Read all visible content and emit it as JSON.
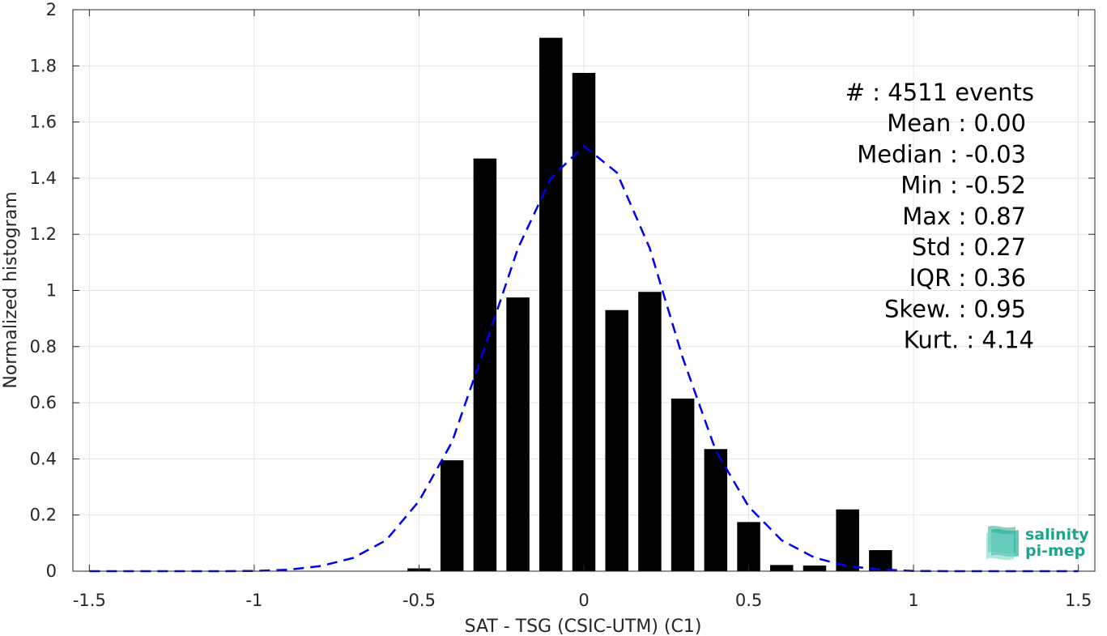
{
  "chart_data": {
    "type": "bar",
    "xlabel": "SAT - TSG (CSIC-UTM) (C1)",
    "ylabel": "Normalized histogram",
    "xlim": [
      -1.55,
      1.55
    ],
    "ylim": [
      0,
      2
    ],
    "xticks": [
      -1.5,
      -1,
      -0.5,
      0,
      0.5,
      1,
      1.5
    ],
    "xtick_labels": [
      "-1.5",
      "-1",
      "-0.5",
      "0",
      "0.5",
      "1",
      "1.5"
    ],
    "yticks": [
      0,
      0.2,
      0.4,
      0.6,
      0.8,
      1,
      1.2,
      1.4,
      1.6,
      1.8,
      2
    ],
    "ytick_labels": [
      "0",
      "0.2",
      "0.4",
      "0.6",
      "0.8",
      "1",
      "1.2",
      "1.4",
      "1.6",
      "1.8",
      "2"
    ],
    "grid": true,
    "bar_color": "#000000",
    "bar_width": 0.07,
    "bars": {
      "x": [
        -0.5,
        -0.4,
        -0.3,
        -0.2,
        -0.1,
        0.0,
        0.1,
        0.2,
        0.3,
        0.4,
        0.5,
        0.6,
        0.7,
        0.8,
        0.9
      ],
      "y": [
        0.01,
        0.395,
        1.47,
        0.975,
        1.9,
        1.775,
        0.93,
        0.995,
        0.615,
        0.435,
        0.175,
        0.022,
        0.02,
        0.22,
        0.075
      ]
    },
    "fit_curve": {
      "style": "dashed",
      "color": "#0000ee",
      "x": [
        -1.5,
        -1.4,
        -1.3,
        -1.2,
        -1.1,
        -1.0,
        -0.9,
        -0.8,
        -0.7,
        -0.6,
        -0.5,
        -0.4,
        -0.3,
        -0.2,
        -0.1,
        0.0,
        0.1,
        0.2,
        0.3,
        0.4,
        0.5,
        0.6,
        0.7,
        0.8,
        0.9,
        1.0,
        1.1,
        1.2,
        1.3,
        1.4,
        1.5
      ],
      "y": [
        0.0,
        0.0,
        0.0,
        0.0,
        0.0,
        0.001,
        0.005,
        0.018,
        0.047,
        0.11,
        0.25,
        0.46,
        0.8,
        1.15,
        1.4,
        1.515,
        1.42,
        1.15,
        0.76,
        0.43,
        0.23,
        0.11,
        0.048,
        0.018,
        0.006,
        0.001,
        0.0,
        0.0,
        0.0,
        0.0,
        0.0
      ]
    },
    "stats": [
      "#  : 4511 events",
      "Mean : 0.00",
      "Median : -0.03",
      "Min : -0.52",
      "Max : 0.87",
      "Std : 0.27",
      "IQR : 0.36",
      "Skew. : 0.95",
      "Kurt. : 4.14"
    ]
  },
  "logo": {
    "line1": "salinity",
    "line2": "pi-mep",
    "color": "#1aa58f"
  }
}
